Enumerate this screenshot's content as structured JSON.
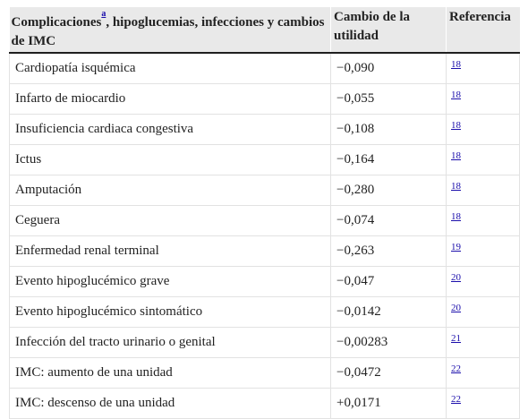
{
  "table": {
    "headers": {
      "col1_main": "Complicaciones",
      "col1_footnote": "a",
      "col1_rest": ", hipoglucemias, infecciones y cambios de IMC",
      "col2": "Cambio de la utilidad",
      "col3": "Referencia"
    },
    "rows": [
      {
        "label": "Cardiopatía isquémica",
        "value": "−0,090",
        "ref": "18"
      },
      {
        "label": "Infarto de miocardio",
        "value": "−0,055",
        "ref": "18"
      },
      {
        "label": "Insuficiencia cardiaca congestiva",
        "value": "−0,108",
        "ref": "18"
      },
      {
        "label": "Ictus",
        "value": "−0,164",
        "ref": "18"
      },
      {
        "label": "Amputación",
        "value": "−0,280",
        "ref": "18"
      },
      {
        "label": "Ceguera",
        "value": "−0,074",
        "ref": "18"
      },
      {
        "label": "Enfermedad renal terminal",
        "value": "−0,263",
        "ref": "19"
      },
      {
        "label": "Evento hipoglucémico grave",
        "value": "−0,047",
        "ref": "20"
      },
      {
        "label": "Evento hipoglucémico sintomático",
        "value": "−0,0142",
        "ref": "20"
      },
      {
        "label": "Infección del tracto urinario o genital",
        "value": "−0,00283",
        "ref": "21"
      },
      {
        "label": "IMC: aumento de una unidad",
        "value": "−0,0472",
        "ref": "22"
      },
      {
        "label": "IMC: descenso de una unidad",
        "value": "+0,0171",
        "ref": "22"
      }
    ]
  },
  "colors": {
    "header_bg": "#e9e9e9",
    "link": "#1a0dab",
    "text": "#222222"
  }
}
